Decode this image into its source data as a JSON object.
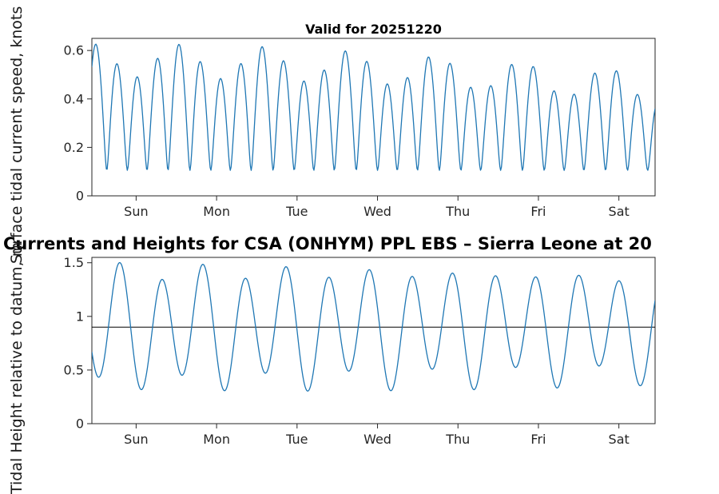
{
  "page_title": "Currents and Heights for CSA (ONHYM) PPL EBS  – Sierra Leone at 20",
  "valid_date": "20251220",
  "colors": {
    "series_line": "#1f77b4",
    "axis": "#262626",
    "mean_line": "#000000",
    "title_text": "#000000"
  },
  "chart_data": [
    {
      "type": "line",
      "title": "Valid for 20251220",
      "ylabel": "Surface tidal current speed, knots",
      "xlabel": "",
      "x_tick_labels": [
        "Sun",
        "Mon",
        "Tue",
        "Wed",
        "Thu",
        "Fri",
        "Sat"
      ],
      "y_ticks": [
        0,
        0.2,
        0.4,
        0.6
      ],
      "xlim_days": [
        0,
        7
      ],
      "ylim": [
        0,
        0.65
      ],
      "grid": false,
      "legend": "none",
      "line_color": "#1f77b4",
      "series_name": "surface tidal current speed (kn)",
      "peaks_per_day": 3.9,
      "slack_minimum_kn_approx": 0.11,
      "peak_speeds_kn_approx": [
        0.62,
        0.63,
        0.6,
        0.5,
        0.51,
        0.61,
        0.61,
        0.58,
        0.48,
        0.47,
        0.58,
        0.59,
        0.56,
        0.46,
        0.53,
        0.55,
        0.53,
        0.44,
        0.48,
        0.52,
        0.52,
        0.37,
        0.41,
        0.45,
        0.5,
        0.35,
        0.4,
        0.44,
        0.5,
        0.36
      ],
      "model": {
        "kind": "current_speed",
        "floor": 0.105,
        "amp_base": 0.42,
        "amp_mod": 0.13,
        "mod_period": 30,
        "m2_period": 0.5175,
        "m2_phase": 1.0,
        "k1_amp": 0.07,
        "k1_period": 1.0027,
        "k1_phase": 1.0
      }
    },
    {
      "type": "line",
      "title": "",
      "ylabel": "Tidal Height relative to datum, m",
      "xlabel": "",
      "x_tick_labels": [
        "Sun",
        "Mon",
        "Tue",
        "Wed",
        "Thu",
        "Fri",
        "Sat"
      ],
      "y_ticks": [
        0,
        0.5,
        1,
        1.5
      ],
      "xlim_days": [
        0,
        7
      ],
      "ylim": [
        0,
        1.55
      ],
      "grid": false,
      "legend": "none",
      "line_color": "#1f77b4",
      "series_name": "tidal height (m)",
      "mean_line": 0.9,
      "high_tide_heights_m_approx": [
        1.5,
        1.35,
        1.5,
        1.32,
        1.52,
        1.3,
        1.52,
        1.27,
        1.5,
        1.25,
        1.48,
        1.22,
        1.47
      ],
      "low_tide_heights_m_approx": [
        0.3,
        0.45,
        0.28,
        0.45,
        0.3,
        0.44,
        0.32,
        0.43,
        0.33,
        0.45,
        0.35,
        0.47,
        0.38
      ],
      "model": {
        "kind": "height",
        "mean": 0.9,
        "amp_base": 0.44,
        "amp_mod": 0.08,
        "mod_period": 30,
        "m2_period": 0.5175,
        "m2_phase": 3.6,
        "k1_amp": 0.1,
        "k1_period": 1.0027,
        "k1_phase": 0.0
      }
    }
  ]
}
